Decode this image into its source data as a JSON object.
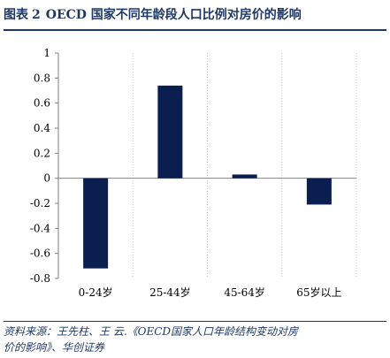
{
  "figure": {
    "label": "图表",
    "number": "2",
    "title": "OECD 国家不同年龄段人口比例对房价的影响"
  },
  "chart_data": {
    "type": "bar",
    "title": "",
    "xlabel": "",
    "ylabel": "",
    "categories": [
      "0-24岁",
      "25-44岁",
      "45-64岁",
      "65岁以上"
    ],
    "values": [
      -0.72,
      0.74,
      0.03,
      -0.21
    ],
    "ylim": [
      -0.8,
      1
    ],
    "yticks": [
      "1",
      "0.8",
      "0.6",
      "0.4",
      "0.2",
      "0",
      "-0.2",
      "-0.4",
      "-0.6",
      "-0.8"
    ],
    "ytick_values": [
      1,
      0.8,
      0.6,
      0.4,
      0.2,
      0,
      -0.2,
      -0.4,
      -0.6,
      -0.8
    ],
    "grid": "vertical-dotted",
    "legend": "none",
    "bar_color": "#0a1f4f"
  },
  "source": {
    "line1": "资料来源：王先柱、王 云.《OECD国家人口年龄结构变动对房",
    "line2": "价的影响》、华创证券"
  }
}
